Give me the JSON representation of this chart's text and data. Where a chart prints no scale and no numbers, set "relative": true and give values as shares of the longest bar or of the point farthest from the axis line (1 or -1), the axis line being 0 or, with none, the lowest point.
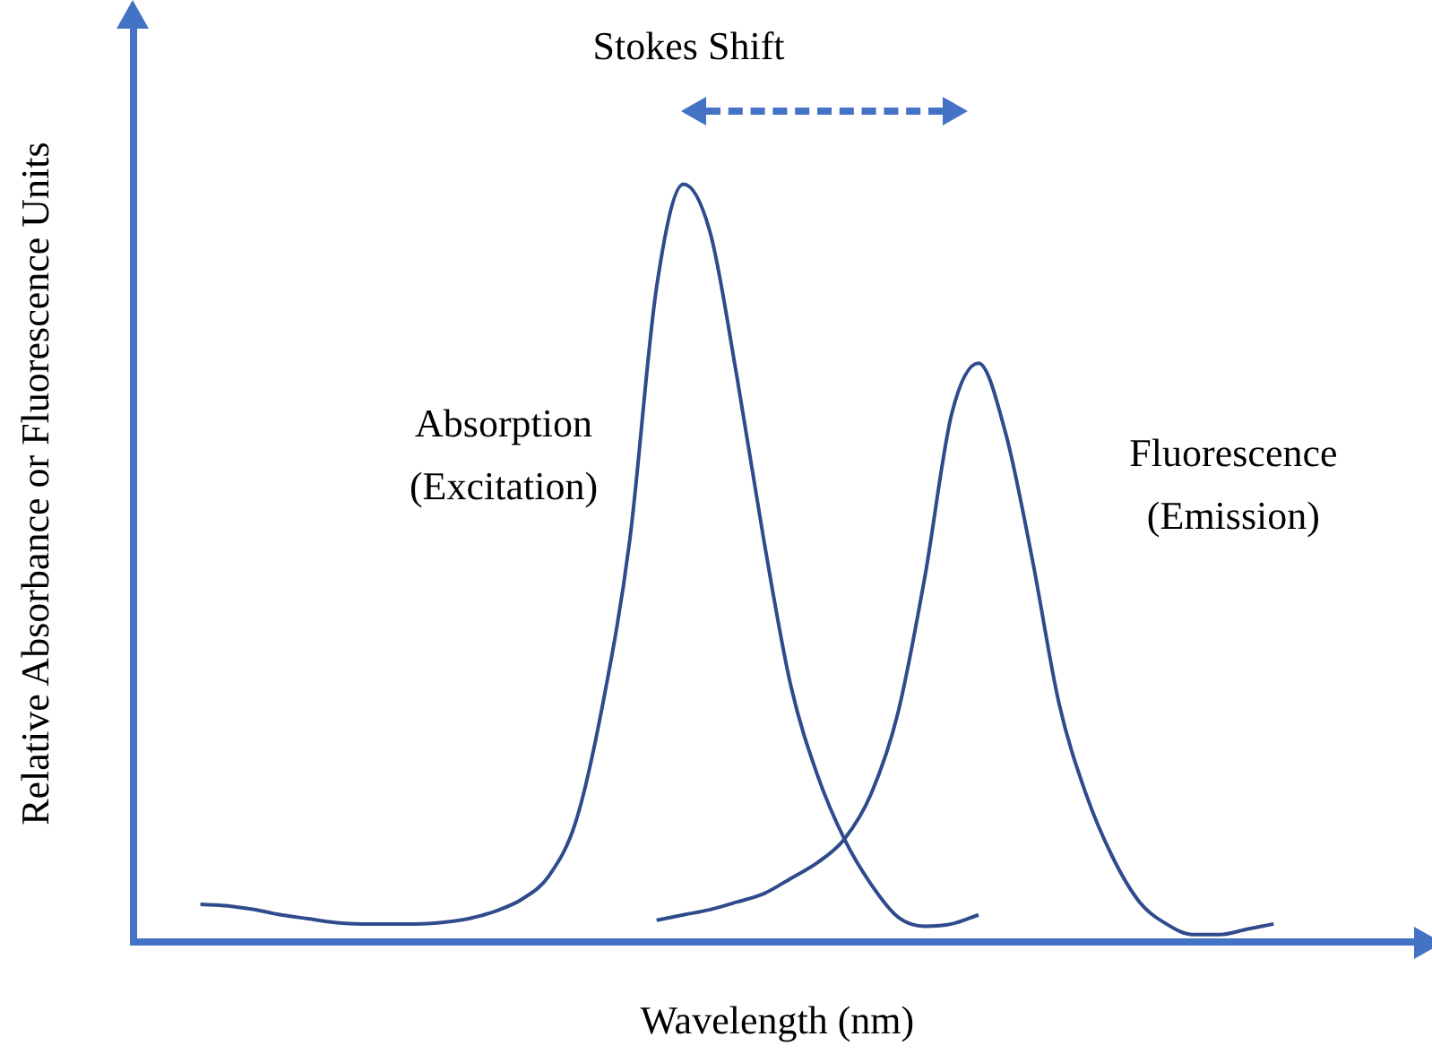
{
  "chart_data": {
    "type": "line",
    "relative": true,
    "xlabel": "Wavelength (nm)",
    "ylabel": "Relative Absorbance or Fluorescence Units",
    "annotations": [
      "Stokes Shift"
    ],
    "legend": false,
    "grid": false,
    "marker": "none",
    "line_style": "solid",
    "categories": [
      null,
      null,
      null,
      null,
      null,
      null,
      null,
      null,
      null,
      null,
      null,
      null,
      null,
      null,
      null,
      null,
      null,
      null,
      null,
      null,
      null,
      null,
      null,
      null,
      null,
      null,
      null,
      null,
      null,
      null,
      null,
      null,
      null,
      null,
      null,
      null,
      null,
      null,
      null,
      null,
      null
    ],
    "series": [
      {
        "name": "Absorption (Excitation)",
        "color": "#2f4b8c",
        "values": [
          0.05,
          0.048,
          0.043,
          0.036,
          0.031,
          0.026,
          0.024,
          0.024,
          0.024,
          0.026,
          0.031,
          0.041,
          0.057,
          0.088,
          0.16,
          0.315,
          0.53,
          0.864,
          1,
          0.936,
          0.745,
          0.53,
          0.339,
          0.22,
          0.136,
          0.076,
          0.033,
          0.021,
          0.024,
          0.036,
          null,
          null,
          null,
          null,
          null,
          null,
          null,
          null,
          null,
          null,
          null
        ]
      },
      {
        "name": "Fluorescence (Emission)",
        "color": "#2f4b8c",
        "values": [
          null,
          null,
          null,
          null,
          null,
          null,
          null,
          null,
          null,
          null,
          null,
          null,
          null,
          null,
          null,
          null,
          null,
          0.029,
          0.036,
          0.043,
          0.053,
          0.064,
          0.084,
          0.105,
          0.136,
          0.196,
          0.303,
          0.482,
          0.697,
          0.764,
          0.673,
          0.506,
          0.315,
          0.196,
          0.112,
          0.053,
          0.024,
          0.01,
          0.01,
          0.017,
          0.024
        ]
      }
    ]
  }
}
